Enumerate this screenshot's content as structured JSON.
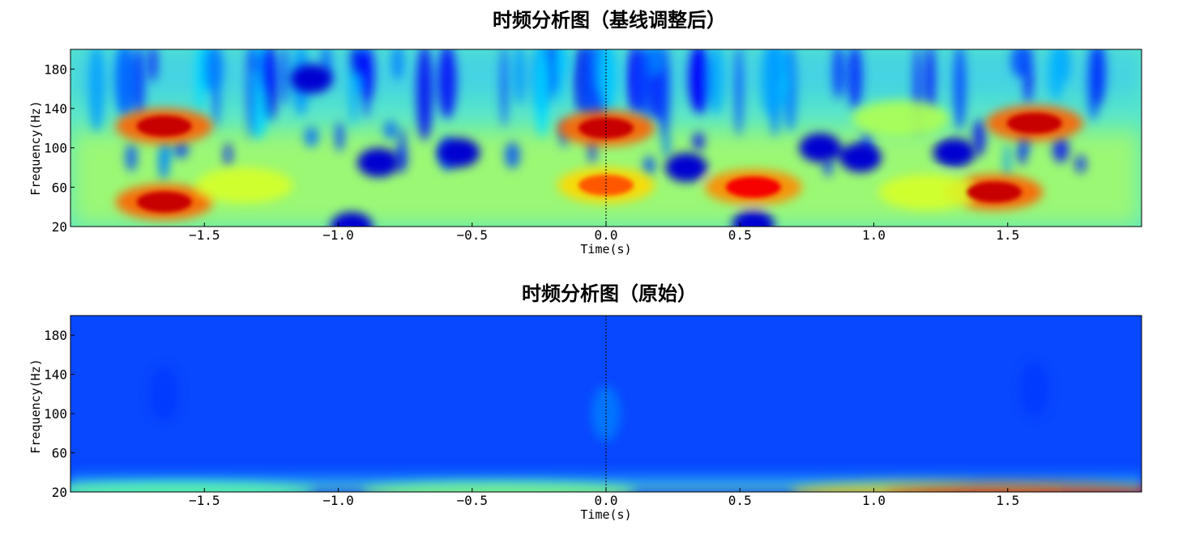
{
  "chart_data": [
    {
      "type": "heatmap",
      "title": "时频分析图（基线调整后）",
      "xlabel": "Time(s)",
      "ylabel": "Frequency(Hz)",
      "xlim": [
        -2.0,
        2.0
      ],
      "ylim": [
        20,
        200
      ],
      "xticks": [
        -1.5,
        -1.0,
        -0.5,
        0.0,
        0.5,
        1.0,
        1.5
      ],
      "xtick_labels": [
        "−1.5",
        "−1.0",
        "−0.5",
        "0.0",
        "0.5",
        "1.0",
        "1.5"
      ],
      "yticks": [
        20,
        60,
        100,
        140,
        180
      ],
      "ytick_labels": [
        "20",
        "60",
        "100",
        "140",
        "180"
      ],
      "colormap": "jet",
      "event_marker_x": 0.0,
      "hotspots": [
        {
          "t": -1.65,
          "f": 122,
          "value": 1.0
        },
        {
          "t": -1.65,
          "f": 45,
          "value": 1.0
        },
        {
          "t": -1.35,
          "f": 62,
          "value": 0.75
        },
        {
          "t": 0.0,
          "f": 120,
          "value": 1.0
        },
        {
          "t": 0.0,
          "f": 62,
          "value": 0.85
        },
        {
          "t": 0.55,
          "f": 60,
          "value": 0.95
        },
        {
          "t": 1.45,
          "f": 55,
          "value": 1.0
        },
        {
          "t": 1.6,
          "f": 125,
          "value": 1.0
        },
        {
          "t": 1.2,
          "f": 55,
          "value": 0.75
        },
        {
          "t": 1.1,
          "f": 130,
          "value": 0.7
        }
      ],
      "coldspots": [
        {
          "t": -1.1,
          "f": 170
        },
        {
          "t": -0.85,
          "f": 85
        },
        {
          "t": -0.55,
          "f": 95
        },
        {
          "t": 0.3,
          "f": 80
        },
        {
          "t": 0.8,
          "f": 100
        },
        {
          "t": 0.95,
          "f": 90
        },
        {
          "t": 1.3,
          "f": 95
        },
        {
          "t": 0.55,
          "f": 22
        },
        {
          "t": -0.95,
          "f": 20
        }
      ]
    },
    {
      "type": "heatmap",
      "title": "时频分析图（原始）",
      "xlabel": "Time(s)",
      "ylabel": "Frequency(Hz)",
      "xlim": [
        -2.0,
        2.0
      ],
      "ylim": [
        20,
        200
      ],
      "xticks": [
        -1.5,
        -1.0,
        -0.5,
        0.0,
        0.5,
        1.0,
        1.5
      ],
      "xtick_labels": [
        "−1.5",
        "−1.0",
        "−0.5",
        "0.0",
        "0.5",
        "1.0",
        "1.5"
      ],
      "yticks": [
        20,
        60,
        100,
        140,
        180
      ],
      "ytick_labels": [
        "20",
        "60",
        "100",
        "140",
        "180"
      ],
      "colormap": "jet",
      "event_marker_x": 0.0,
      "low_band": [
        {
          "t": -1.6,
          "value": 0.45
        },
        {
          "t": -0.4,
          "value": 0.5
        },
        {
          "t": 1.2,
          "value": 0.7
        },
        {
          "t": 1.55,
          "value": 0.9
        }
      ],
      "faint_spots": [
        {
          "t": -1.65,
          "f": 120,
          "value": 0.18
        },
        {
          "t": 0.0,
          "f": 100,
          "value": 0.25
        },
        {
          "t": 1.6,
          "f": 125,
          "value": 0.18
        }
      ]
    }
  ]
}
